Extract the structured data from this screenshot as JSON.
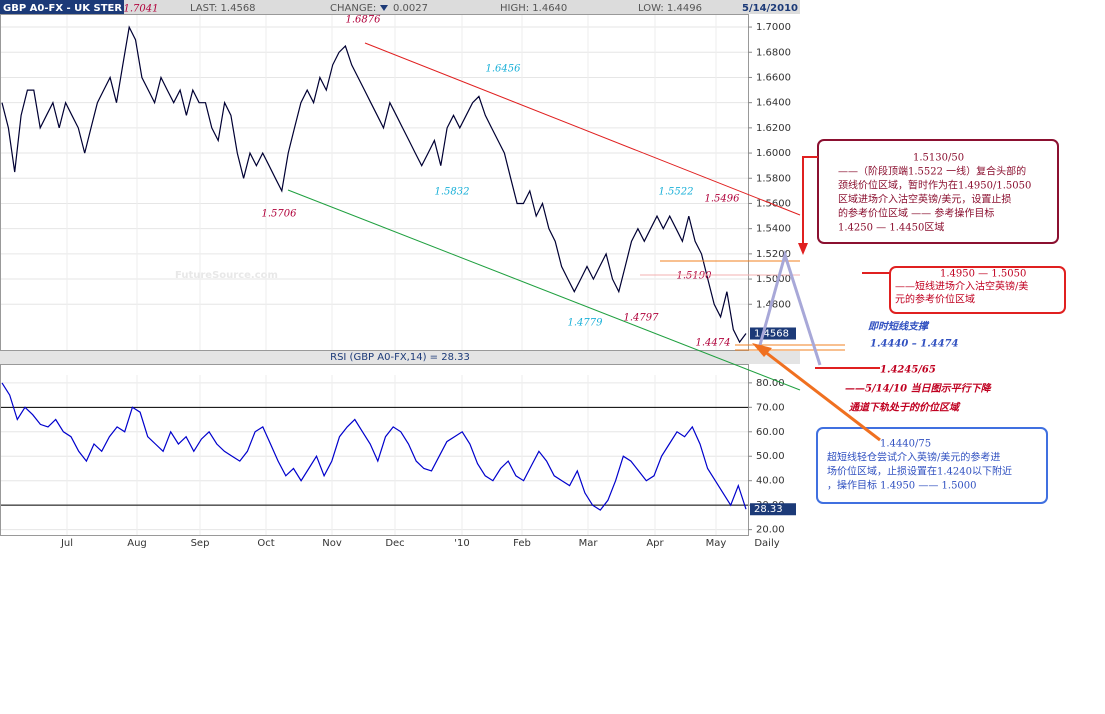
{
  "header": {
    "symbol": "GBP A0-FX - UK STER",
    "last": "LAST: 1.4568",
    "change_label": "CHANGE:",
    "change": "0.0027",
    "high": "HIGH: 1.4640",
    "low": "LOW: 1.4496",
    "date": "5/14/2010"
  },
  "chart_data": [
    {
      "type": "line",
      "color": "#000033",
      "ylim": [
        1.4437,
        1.7175
      ],
      "yticks": [
        {
          "value": 1.48,
          "label": "1.4800"
        },
        {
          "value": 1.5,
          "label": "1.5000"
        },
        {
          "value": 1.52,
          "label": "1.5200"
        },
        {
          "value": 1.54,
          "label": "1.5400"
        },
        {
          "value": 1.56,
          "label": "1.5600"
        },
        {
          "value": 1.58,
          "label": "1.5800"
        },
        {
          "value": 1.6,
          "label": "1.6000"
        },
        {
          "value": 1.62,
          "label": "1.6200"
        },
        {
          "value": 1.64,
          "label": "1.6400"
        },
        {
          "value": 1.66,
          "label": "1.6600"
        },
        {
          "value": 1.68,
          "label": "1.6800"
        },
        {
          "value": 1.7,
          "label": "1.7000"
        }
      ],
      "x_labels": [
        "Jul",
        "Aug",
        "Sep",
        "Oct",
        "Nov",
        "Dec",
        "'10",
        "Feb",
        "Mar",
        "Apr",
        "May",
        "Daily"
      ],
      "values": [
        1.64,
        1.62,
        1.585,
        1.63,
        1.65,
        1.65,
        1.62,
        1.63,
        1.64,
        1.62,
        1.64,
        1.63,
        1.62,
        1.6,
        1.62,
        1.64,
        1.65,
        1.66,
        1.64,
        1.67,
        1.7,
        1.69,
        1.66,
        1.65,
        1.64,
        1.66,
        1.65,
        1.64,
        1.65,
        1.63,
        1.65,
        1.64,
        1.64,
        1.62,
        1.61,
        1.64,
        1.63,
        1.6,
        1.58,
        1.6,
        1.59,
        1.6,
        1.59,
        1.58,
        1.57,
        1.6,
        1.62,
        1.64,
        1.65,
        1.64,
        1.66,
        1.65,
        1.67,
        1.68,
        1.685,
        1.67,
        1.66,
        1.65,
        1.64,
        1.63,
        1.62,
        1.64,
        1.63,
        1.62,
        1.61,
        1.6,
        1.59,
        1.6,
        1.61,
        1.59,
        1.62,
        1.63,
        1.62,
        1.63,
        1.64,
        1.645,
        1.63,
        1.62,
        1.61,
        1.6,
        1.58,
        1.56,
        1.56,
        1.57,
        1.55,
        1.56,
        1.54,
        1.53,
        1.51,
        1.5,
        1.49,
        1.5,
        1.51,
        1.5,
        1.51,
        1.52,
        1.5,
        1.49,
        1.51,
        1.53,
        1.54,
        1.53,
        1.54,
        1.55,
        1.54,
        1.55,
        1.54,
        1.53,
        1.55,
        1.53,
        1.52,
        1.5,
        1.48,
        1.47,
        1.49,
        1.46,
        1.45,
        1.4568
      ],
      "last_label": "1.4568",
      "annotations": [
        {
          "text": "1.7041",
          "color": "#b0003a"
        },
        {
          "text": "1.6876",
          "color": "#b0003a"
        },
        {
          "text": "1.6456",
          "color": "#1ab0d8"
        },
        {
          "text": "1.5832",
          "color": "#1ab0d8"
        },
        {
          "text": "1.5706",
          "color": "#b0003a"
        },
        {
          "text": "1.5522",
          "color": "#1ab0d8"
        },
        {
          "text": "1.5496",
          "color": "#b0003a"
        },
        {
          "text": "1.5190",
          "color": "#b0003a"
        },
        {
          "text": "1.4779",
          "color": "#1ab0d8"
        },
        {
          "text": "1.4797",
          "color": "#b0003a"
        },
        {
          "text": "1.4474",
          "color": "#b0003a"
        }
      ],
      "watermark": "FutureSource.com"
    },
    {
      "type": "line",
      "color": "#0000cc",
      "title": "RSI (GBP A0-FX,14) = 28.33",
      "ylim": [
        17.8,
        87.3
      ],
      "yticks": [
        {
          "value": 20,
          "label": "20.00"
        },
        {
          "value": 30,
          "label": "30.00"
        },
        {
          "value": 40,
          "label": "40.00"
        },
        {
          "value": 50,
          "label": "50.00"
        },
        {
          "value": 60,
          "label": "60.00"
        },
        {
          "value": 70,
          "label": "70.00"
        },
        {
          "value": 80,
          "label": "80.00"
        }
      ],
      "reference_lines": [
        70,
        30
      ],
      "values": [
        80,
        75,
        65,
        70,
        67,
        63,
        62,
        65,
        60,
        58,
        52,
        48,
        55,
        52,
        58,
        62,
        60,
        70,
        68,
        58,
        55,
        52,
        60,
        55,
        58,
        52,
        57,
        60,
        55,
        52,
        50,
        48,
        52,
        60,
        62,
        55,
        48,
        42,
        45,
        40,
        45,
        50,
        42,
        48,
        58,
        62,
        65,
        60,
        55,
        48,
        58,
        62,
        60,
        55,
        48,
        45,
        44,
        50,
        56,
        58,
        60,
        55,
        47,
        42,
        40,
        45,
        48,
        42,
        40,
        46,
        52,
        48,
        42,
        40,
        38,
        44,
        35,
        30,
        28,
        32,
        40,
        50,
        48,
        44,
        40,
        42,
        50,
        55,
        60,
        58,
        62,
        55,
        45,
        40,
        35,
        30,
        38,
        28.33
      ],
      "last_label": "28.33"
    }
  ],
  "notes": [
    {
      "lines": [
        "1.5130/50",
        "——（阶段顶端1.5522 一线）复合头部的",
        "颈线价位区域，暂时作为在1.4950/1.5050",
        "区域进场介入沽空英镑/美元，设置止损",
        "的参考价位区域 —— 参考操作目标",
        "1.4250 — 1.4450区域"
      ]
    },
    {
      "lines": [
        "1.4950 — 1.5050",
        "——短线进场介入沽空英镑/美",
        "元的参考价位区域"
      ]
    },
    {
      "lines": [
        "即时短线支撑",
        "1.4440 – 1.4474"
      ]
    },
    {
      "lines": [
        "1.4245/65",
        "——5/14/10 当日图示平行下降",
        "通道下轨处于的价位区域"
      ]
    },
    {
      "lines": [
        "1.4440/75",
        "超短线轻仓尝试介入英镑/美元的参考进",
        "场价位区域，止损设置在1.4240以下附近",
        "，操作目标 1.4950 —— 1.5000"
      ]
    }
  ]
}
